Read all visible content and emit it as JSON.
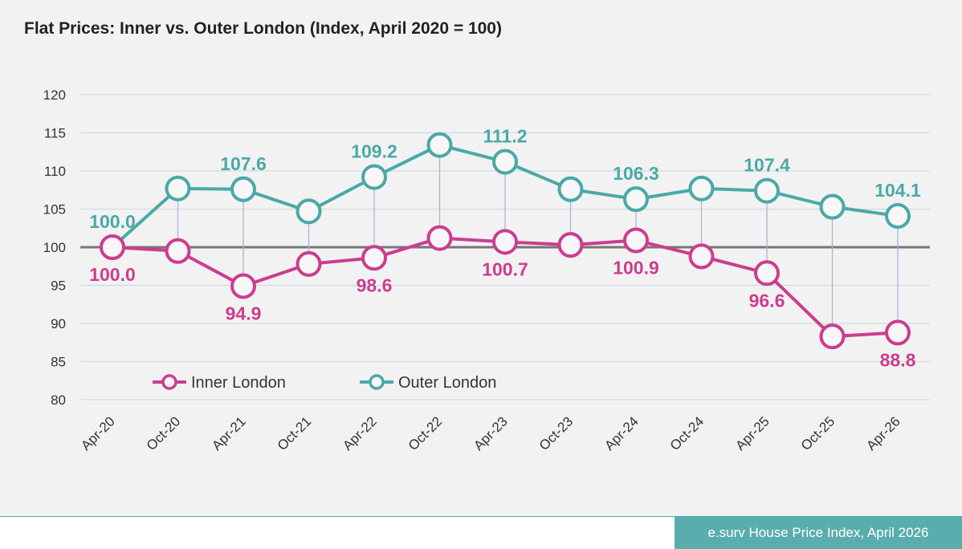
{
  "title": "Flat Prices: Inner vs. Outer London (Index, April 2020 = 100)",
  "source": "e.surv House Price Index, April 2026",
  "colors": {
    "inner": "#cc3d8f",
    "outer": "#4aa9a6",
    "baseline": "#777777",
    "grid": "#cfdbe1",
    "connector": "#a9b6cf"
  },
  "chart_data": {
    "type": "line",
    "title": "Flat Prices: Inner vs. Outer London (Index, April 2020 = 100)",
    "categories": [
      "Apr-20",
      "Oct-20",
      "Apr-21",
      "Oct-21",
      "Apr-22",
      "Oct-22",
      "Apr-23",
      "Oct-23",
      "Apr-24",
      "Oct-24",
      "Apr-25",
      "Oct-25",
      "Apr-26"
    ],
    "ylim": [
      80,
      120
    ],
    "yticks": [
      80,
      85,
      90,
      95,
      100,
      105,
      110,
      115,
      120
    ],
    "baseline": 100,
    "grid": true,
    "legend": "bottom-left",
    "series": [
      {
        "name": "Inner London",
        "color": "#cc3d8f",
        "values": [
          100.0,
          99.5,
          94.9,
          97.8,
          98.6,
          101.2,
          100.7,
          100.3,
          100.9,
          98.8,
          96.6,
          88.3,
          88.8
        ]
      },
      {
        "name": "Outer London",
        "color": "#4aa9a6",
        "values": [
          100.0,
          107.7,
          107.6,
          104.7,
          109.2,
          113.4,
          111.2,
          107.6,
          106.3,
          107.7,
          107.4,
          105.3,
          104.1
        ]
      }
    ],
    "annotations": [
      {
        "series": 1,
        "index": 0,
        "text": "100.0",
        "pos": "above"
      },
      {
        "series": 1,
        "index": 2,
        "text": "107.6",
        "pos": "above"
      },
      {
        "series": 1,
        "index": 4,
        "text": "109.2",
        "pos": "above"
      },
      {
        "series": 1,
        "index": 6,
        "text": "111.2",
        "pos": "above"
      },
      {
        "series": 1,
        "index": 8,
        "text": "106.3",
        "pos": "above"
      },
      {
        "series": 1,
        "index": 10,
        "text": "107.4",
        "pos": "above"
      },
      {
        "series": 1,
        "index": 12,
        "text": "104.1",
        "pos": "above"
      },
      {
        "series": 0,
        "index": 0,
        "text": "100.0",
        "pos": "below"
      },
      {
        "series": 0,
        "index": 2,
        "text": "94.9",
        "pos": "below"
      },
      {
        "series": 0,
        "index": 4,
        "text": "98.6",
        "pos": "below"
      },
      {
        "series": 0,
        "index": 6,
        "text": "100.7",
        "pos": "below"
      },
      {
        "series": 0,
        "index": 8,
        "text": "100.9",
        "pos": "below"
      },
      {
        "series": 0,
        "index": 10,
        "text": "96.6",
        "pos": "below"
      },
      {
        "series": 0,
        "index": 12,
        "text": "88.8",
        "pos": "below"
      }
    ]
  }
}
